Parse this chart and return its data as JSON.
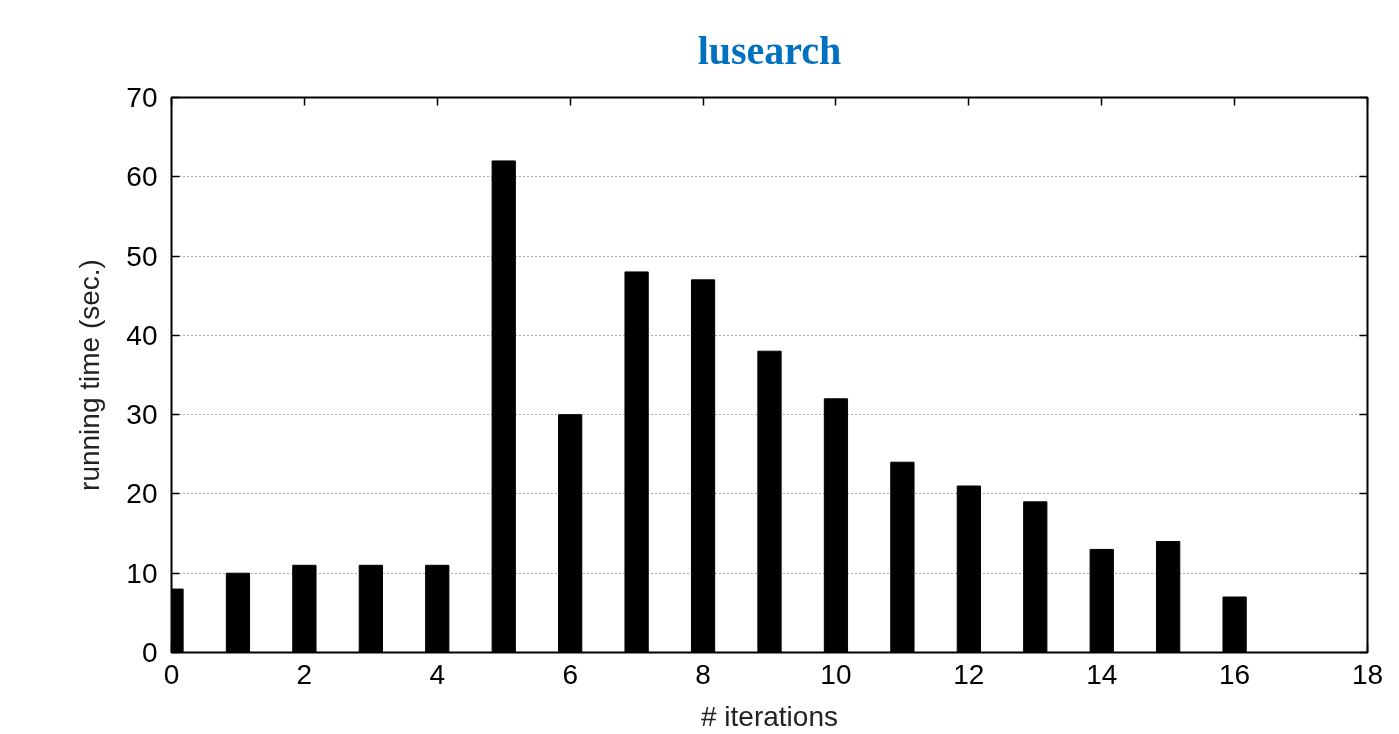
{
  "chart_data": {
    "type": "bar",
    "title": "lusearch",
    "xlabel": "# iterations",
    "ylabel": "running time (sec.)",
    "x": [
      0,
      1,
      2,
      3,
      4,
      5,
      6,
      7,
      8,
      9,
      10,
      11,
      12,
      13,
      14,
      15,
      16
    ],
    "values": [
      8,
      10,
      11,
      11,
      11,
      62,
      30,
      48,
      47,
      38,
      32,
      24,
      21,
      19,
      13,
      14,
      7
    ],
    "color": "#000000",
    "xlim": [
      0,
      18
    ],
    "xticks": [
      0,
      2,
      4,
      6,
      8,
      10,
      12,
      14,
      16,
      18
    ],
    "ylim": [
      0,
      70
    ],
    "yticks": [
      0,
      10,
      20,
      30,
      40,
      50,
      60,
      70
    ],
    "grid": "y"
  }
}
